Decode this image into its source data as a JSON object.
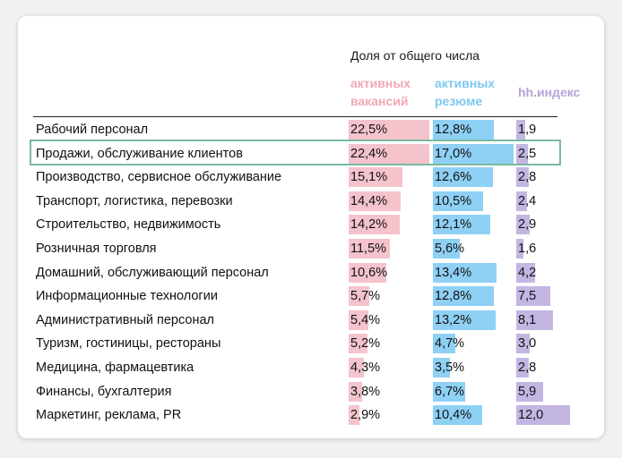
{
  "header": "Доля от общего числа",
  "columns": [
    {
      "label": "активных\nвакансий",
      "color": "#f0a8b4"
    },
    {
      "label": "активных\nрезюме",
      "color": "#7cc8f0"
    },
    {
      "label": "hh.индекс",
      "color": "#b4a4d6"
    }
  ],
  "bar_colors": {
    "vacancies": "#f4c3cc",
    "resumes": "#8fd0f5",
    "hh": "#c4b6e3"
  },
  "highlight_color": "#7ab9a0",
  "chart_data": {
    "type": "table",
    "rows": [
      {
        "label": "Рабочий персонал",
        "vacancies": "22,5%",
        "v": 22.5,
        "resumes": "12,8%",
        "r": 12.8,
        "hh": "1,9",
        "h": 1.9
      },
      {
        "label": "Продажи, обслуживание клиентов",
        "vacancies": "22,4%",
        "v": 22.4,
        "resumes": "17,0%",
        "r": 17.0,
        "hh": "2,5",
        "h": 2.5,
        "highlighted": true
      },
      {
        "label": "Производство, сервисное обслуживание",
        "vacancies": "15,1%",
        "v": 15.1,
        "resumes": "12,6%",
        "r": 12.6,
        "hh": "2,8",
        "h": 2.8
      },
      {
        "label": "Транспорт, логистика, перевозки",
        "vacancies": "14,4%",
        "v": 14.4,
        "resumes": "10,5%",
        "r": 10.5,
        "hh": "2,4",
        "h": 2.4
      },
      {
        "label": "Строительство, недвижимость",
        "vacancies": "14,2%",
        "v": 14.2,
        "resumes": "12,1%",
        "r": 12.1,
        "hh": "2,9",
        "h": 2.9
      },
      {
        "label": "Розничная торговля",
        "vacancies": "11,5%",
        "v": 11.5,
        "resumes": "5,6%",
        "r": 5.6,
        "hh": "1,6",
        "h": 1.6
      },
      {
        "label": "Домашний, обслуживающий персонал",
        "vacancies": "10,6%",
        "v": 10.6,
        "resumes": "13,4%",
        "r": 13.4,
        "hh": "4,2",
        "h": 4.2
      },
      {
        "label": "Информационные технологии",
        "vacancies": "5,7%",
        "v": 5.7,
        "resumes": "12,8%",
        "r": 12.8,
        "hh": "7,5",
        "h": 7.5
      },
      {
        "label": "Административный персонал",
        "vacancies": "5,4%",
        "v": 5.4,
        "resumes": "13,2%",
        "r": 13.2,
        "hh": "8,1",
        "h": 8.1
      },
      {
        "label": "Туризм, гостиницы, рестораны",
        "vacancies": "5,2%",
        "v": 5.2,
        "resumes": "4,7%",
        "r": 4.7,
        "hh": "3,0",
        "h": 3.0
      },
      {
        "label": "Медицина, фармацевтика",
        "vacancies": "4,3%",
        "v": 4.3,
        "resumes": "3,5%",
        "r": 3.5,
        "hh": "2,8",
        "h": 2.8
      },
      {
        "label": "Финансы, бухгалтерия",
        "vacancies": "3,8%",
        "v": 3.8,
        "resumes": "6,7%",
        "r": 6.7,
        "hh": "5,9",
        "h": 5.9
      },
      {
        "label": "Маркетинг, реклама, PR",
        "vacancies": "2,9%",
        "v": 2.9,
        "resumes": "10,4%",
        "r": 10.4,
        "hh": "12,0",
        "h": 12.0
      }
    ]
  }
}
